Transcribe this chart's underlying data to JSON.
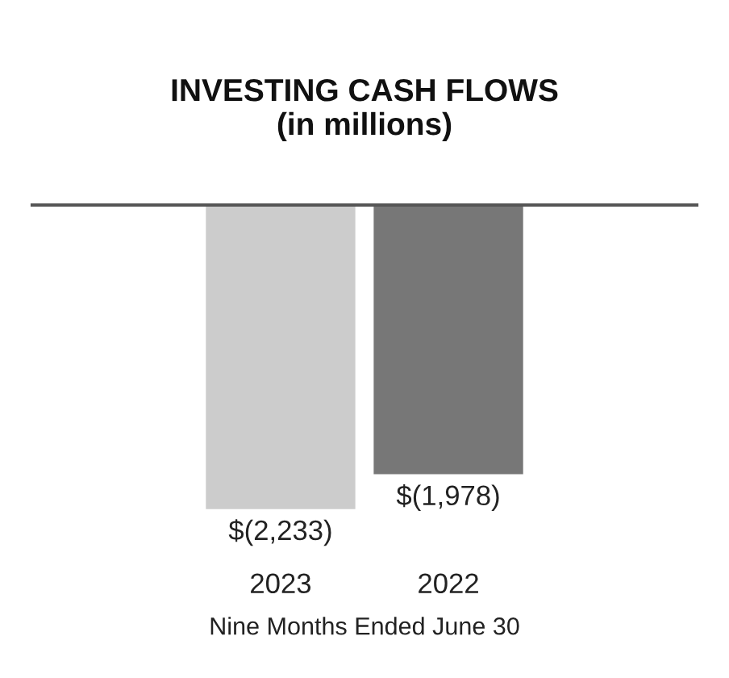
{
  "chart_data": {
    "type": "bar",
    "title": "INVESTING CASH FLOWS\n(in millions)",
    "categories": [
      "2023",
      "2022"
    ],
    "values": [
      -2233,
      -1978
    ],
    "colors": [
      "#cccccc",
      "#777777"
    ],
    "value_labels": [
      "$(2,233)",
      "$(1,978)"
    ],
    "xlabel": "Nine Months Ended June 30"
  }
}
